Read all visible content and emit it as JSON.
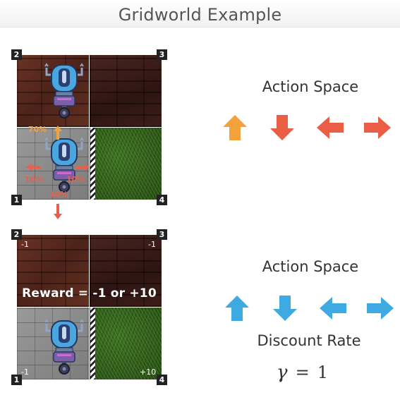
{
  "title": "Gridworld Example",
  "top_grid": {
    "corners": [
      "2",
      "3",
      "1",
      "4"
    ],
    "probabilities": {
      "up": "70%",
      "left": "10%",
      "right": "10%",
      "down": "10%"
    }
  },
  "bottom_grid": {
    "corners": [
      "2",
      "3",
      "1",
      "4"
    ],
    "cell_rewards": {
      "top_left": "-1",
      "top_right": "-1",
      "bottom_left": "-1",
      "bottom_right": "+10"
    },
    "reward_caption": "Reward = -1 or +10"
  },
  "top_panel": {
    "heading": "Action Space",
    "actions": [
      "up-arrow",
      "down-arrow",
      "left-arrow",
      "right-arrow"
    ],
    "colors": {
      "up": "#f4a23c",
      "others": "#e95e44"
    }
  },
  "bottom_panel": {
    "heading": "Action Space",
    "actions": [
      "up-arrow",
      "down-arrow",
      "left-arrow",
      "right-arrow"
    ],
    "color": "#3fa9e1",
    "discount_heading": "Discount Rate",
    "discount_symbol": "γ",
    "discount_equals": "=",
    "discount_value": "1"
  }
}
